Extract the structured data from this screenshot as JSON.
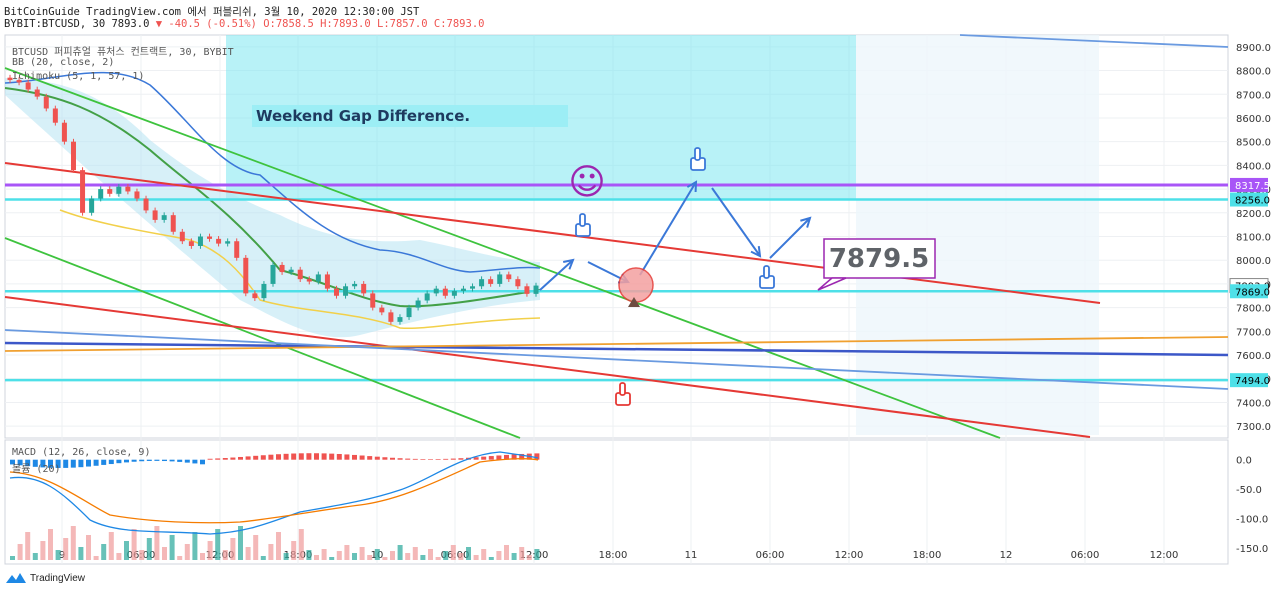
{
  "header": {
    "line1": "BitCoinGuide TradingView.com 에서 퍼블리쉬, 3월 10, 2020 12:30:00 JST",
    "symbol": "BYBIT:BTCUSD, 30 7893.0",
    "change": "▼ -40.5 (-0.51%)",
    "ohlc": "O:7858.5 H:7893.0 L:7857.0 C:7893.0"
  },
  "legend": {
    "instrument": "BTCUSD 퍼피츄얼 퓨처스 컨트랙트, 30, BYBIT",
    "bb": "BB (20, close, 2)",
    "ichimoku": "Ichimoku (5, 1, 57, 1)",
    "macd": "MACD (12, 26, close, 9)",
    "volume": "볼륨 (20)"
  },
  "annotations": {
    "gap_label": "Weekend Gap Difference.",
    "target_callout": "7879.5",
    "smiley": "☺"
  },
  "branding": {
    "logo_text": "TradingView"
  },
  "colors": {
    "up": "#26a69a",
    "down": "#ef5350",
    "cloud": "#b7e4f3",
    "gap_box": "#7ee8f0",
    "green_line": "#3ec33e",
    "red_line": "#e53935",
    "purple_line": "#a855f7",
    "blue_line": "#3c57c8",
    "orange_line": "#f0a030",
    "cyan_line": "#4ee0e8"
  },
  "chart_data": {
    "type": "line",
    "title": "",
    "price_axis": {
      "ticks": [
        "8900.0",
        "8800.0",
        "8700.0",
        "8600.0",
        "8500.0",
        "8400.0",
        "8300.0",
        "8200.0",
        "8100.0",
        "8000.0",
        "7900.0",
        "7800.0",
        "7700.0",
        "7600.0",
        "7500.0",
        "7400.0",
        "7300.0"
      ],
      "badges": [
        {
          "label": "8317.5",
          "value": 8317.5,
          "color": "#a855f7"
        },
        {
          "label": "8256.0",
          "value": 8256,
          "color": "#4ee0e8"
        },
        {
          "label": "7893.0",
          "value": 7893,
          "color": "#ffffff"
        },
        {
          "label": "7869.0",
          "value": 7869,
          "color": "#4ee0e8"
        },
        {
          "label": "7494.0",
          "value": 7494,
          "color": "#4ee0e8"
        }
      ],
      "ylim": [
        7250,
        8950
      ]
    },
    "macd_axis": {
      "ticks": [
        "0.0",
        "-50.0",
        "-100.0",
        "-150.0"
      ],
      "ylim": [
        -170,
        30
      ]
    },
    "time_axis": {
      "ticks": [
        "9",
        "06:00",
        "12:00",
        "18:00",
        "10",
        "06:00",
        "12:00",
        "18:00",
        "11",
        "06:00",
        "12:00",
        "18:00",
        "12",
        "06:00",
        "12:00"
      ]
    },
    "horizontal_levels": [
      {
        "name": "resistance-purple",
        "value": 8317.5
      },
      {
        "name": "gap-top-cyan",
        "value": 8256
      },
      {
        "name": "current-cyan",
        "value": 7869
      },
      {
        "name": "support-cyan",
        "value": 7494
      }
    ],
    "candles_close": [
      8760,
      8750,
      8720,
      8690,
      8640,
      8580,
      8500,
      8380,
      8200,
      8260,
      8300,
      8280,
      8310,
      8290,
      8260,
      8210,
      8170,
      8190,
      8120,
      8080,
      8060,
      8100,
      8090,
      8070,
      8080,
      8010,
      7860,
      7840,
      7900,
      7980,
      7950,
      7960,
      7920,
      7910,
      7940,
      7880,
      7850,
      7890,
      7900,
      7860,
      7800,
      7780,
      7740,
      7760,
      7800,
      7830,
      7860,
      7880,
      7850,
      7870,
      7880,
      7890,
      7920,
      7900,
      7940,
      7920,
      7890,
      7858,
      7893
    ]
  }
}
